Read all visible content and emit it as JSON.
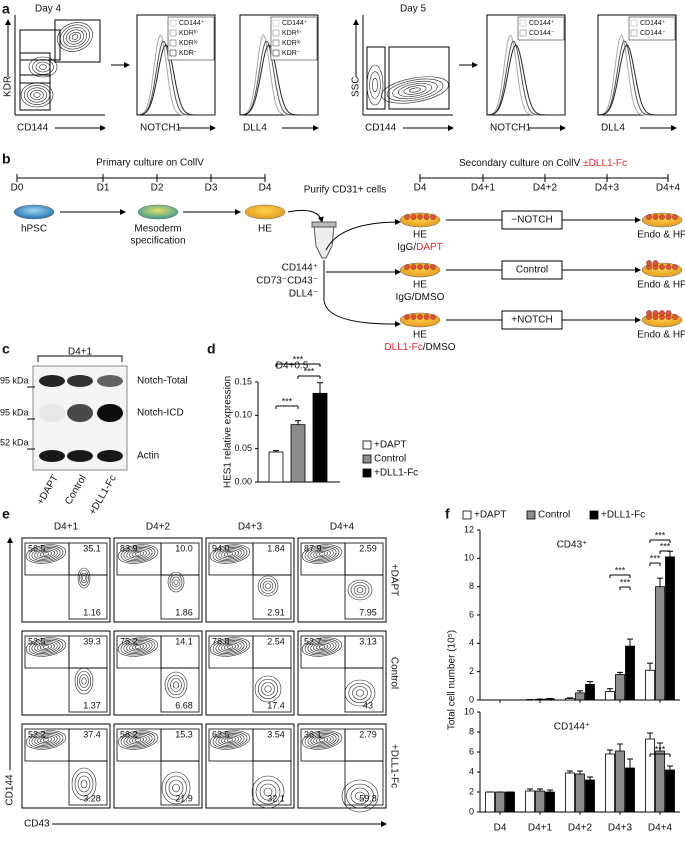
{
  "panel_labels": [
    "a",
    "b",
    "c",
    "d",
    "e",
    "f"
  ],
  "panel_a": {
    "day4": "Day 4",
    "day5": "Day 5",
    "plots": [
      {
        "y_label": "KDR",
        "x_label": "CD144"
      },
      {
        "x_label": "NOTCH1",
        "legend": [
          "CD144⁺",
          "KDRʰⁱ",
          "KDRˡᵒ",
          "KDR⁻"
        ]
      },
      {
        "x_label": "DLL4",
        "legend": [
          "CD144⁺",
          "KDRʰⁱ",
          "KDRˡᵒ",
          "KDR⁻"
        ]
      },
      {
        "y_label": "SSC",
        "x_label": "CD144"
      },
      {
        "x_label": "NOTCH1",
        "legend": [
          "CD144⁺",
          "CD144⁻"
        ]
      },
      {
        "x_label": "DLL4",
        "legend": [
          "CD144⁺",
          "CD144⁻"
        ]
      }
    ]
  },
  "panel_b": {
    "primary_title": "Primary culture on CollV",
    "primary_days": [
      "D0",
      "D1",
      "D2",
      "D3",
      "D4"
    ],
    "secondary_title": "Secondary culture on CollV",
    "secondary_highlight": "±DLL1-Fc",
    "secondary_days": [
      "D4",
      "D4+1",
      "D4+2",
      "D4+3",
      "D4+4"
    ],
    "stage_hpsc": "hPSC",
    "stage_mesoderm": [
      "Mesoderm",
      "specification"
    ],
    "stage_he": "HE",
    "purify": "Purify CD31+ cells",
    "markers": [
      "CD144⁺",
      "CD73⁻CD43⁻",
      "DLL4⁻"
    ],
    "arms": [
      {
        "cell": "HE",
        "treatment": [
          {
            "text": "IgG/"
          },
          {
            "text": "DAPT",
            "color": "#e8262a"
          }
        ],
        "condition": "−NOTCH",
        "outcome": "Endo & HP"
      },
      {
        "cell": "HE",
        "treatment": [
          {
            "text": "IgG/DMSO"
          }
        ],
        "condition": "Control",
        "outcome": "Endo & HP"
      },
      {
        "cell": "HE",
        "treatment": [
          {
            "text": "DLL1-Fc",
            "color": "#e8262a"
          },
          {
            "text": "/DMSO"
          }
        ],
        "condition": "+NOTCH",
        "outcome": "Endo & HP"
      }
    ]
  },
  "panel_c": {
    "timepoint": "D4+1",
    "size_markers": [
      "95 kDa",
      "95 kDa",
      "52 kDa"
    ],
    "bands": [
      "Notch-Total",
      "Notch-ICD",
      "Actin"
    ],
    "lanes": [
      "+DAPT",
      "Control",
      "+DLL1-Fc"
    ]
  },
  "panel_e": {
    "columns": [
      "D4+1",
      "D4+2",
      "D4+3",
      "D4+4"
    ],
    "rows": [
      "+DAPT",
      "Control",
      "+DLL1-Fc"
    ],
    "x_label": "CD43",
    "y_label": "CD144",
    "quadrants": [
      [
        [
          "56.5",
          "35.1",
          "1.16"
        ],
        [
          "83.9",
          "10.0",
          "1.86"
        ],
        [
          "94.0",
          "1.84",
          "2.91"
        ],
        [
          "87.9",
          "2.59",
          "7.95"
        ]
      ],
      [
        [
          "52.5",
          "39.3",
          "1.37"
        ],
        [
          "75.2",
          "14.1",
          "6.68"
        ],
        [
          "78.8",
          "2.54",
          "17.4"
        ],
        [
          "52.7",
          "3.13",
          "43"
        ]
      ],
      [
        [
          "52.2",
          "37.4",
          "3.28"
        ],
        [
          "58.2",
          "15.3",
          "21.9"
        ],
        [
          "62.5",
          "3.54",
          "32.1"
        ],
        [
          "36.1",
          "2.79",
          "59.8"
        ]
      ]
    ]
  },
  "chart_data": [
    {
      "type": "bar",
      "title": "D4+0.5",
      "y_label": "HES1 relative expression",
      "categories": [
        "+DAPT",
        "Control",
        "+DLL1-Fc"
      ],
      "values": [
        0.045,
        0.086,
        0.133
      ],
      "errors": [
        0.002,
        0.006,
        0.016
      ],
      "colors": [
        "#ffffff",
        "#8c8c8c",
        "#000000"
      ],
      "ylim": [
        0,
        0.15
      ],
      "yticks": [
        {
          "value": 0,
          "label": "0.00"
        },
        {
          "value": 0.05,
          "label": "0.05"
        },
        {
          "value": 0.1,
          "label": "0.10"
        },
        {
          "value": 0.15,
          "label": "0.15"
        }
      ],
      "significance": [
        "***",
        "***",
        "***"
      ]
    },
    {
      "type": "grouped_bar",
      "title": "CD43⁺",
      "y_label": "Total cell number (10⁵)",
      "categories": [
        "D4",
        "D4+1",
        "D4+2",
        "D4+3",
        "D4+4"
      ],
      "series": [
        {
          "name": "+DAPT",
          "color": "#ffffff",
          "values": [
            0,
            0.02,
            0.1,
            0.6,
            2.1
          ],
          "errors": [
            0,
            0.01,
            0.05,
            0.2,
            0.5
          ]
        },
        {
          "name": "Control",
          "color": "#8c8c8c",
          "values": [
            0,
            0.05,
            0.5,
            1.8,
            8.0
          ],
          "errors": [
            0,
            0.02,
            0.15,
            0.15,
            0.6
          ]
        },
        {
          "name": "+DLL1-Fc",
          "color": "#000000",
          "values": [
            0,
            0.08,
            1.1,
            3.8,
            10.1
          ],
          "errors": [
            0,
            0.03,
            0.2,
            0.5,
            0.4
          ]
        }
      ],
      "ylim": [
        0,
        12
      ],
      "yticks": [
        0,
        2,
        4,
        6,
        8,
        10,
        12
      ],
      "significance": [
        "***",
        "***",
        "***",
        "***",
        "***"
      ]
    },
    {
      "type": "grouped_bar",
      "title": "CD144⁺",
      "categories": [
        "D4",
        "D4+1",
        "D4+2",
        "D4+3",
        "D4+4"
      ],
      "series": [
        {
          "color": "#ffffff",
          "values": [
            2,
            2.1,
            3.9,
            5.8,
            7.3
          ],
          "errors": [
            0,
            0.2,
            0.2,
            0.4,
            0.6
          ]
        },
        {
          "color": "#8c8c8c",
          "values": [
            2,
            2.1,
            3.8,
            6.1,
            6.1
          ],
          "errors": [
            0,
            0.2,
            0.3,
            0.7,
            0.8
          ]
        },
        {
          "color": "#000000",
          "values": [
            2,
            2.0,
            3.2,
            4.4,
            4.2
          ],
          "errors": [
            0,
            0.2,
            0.3,
            0.9,
            0.4
          ]
        }
      ],
      "ylim": [
        0,
        10
      ],
      "yticks": [
        0,
        2,
        4,
        6,
        8,
        10
      ],
      "significance": [
        "***"
      ]
    }
  ]
}
